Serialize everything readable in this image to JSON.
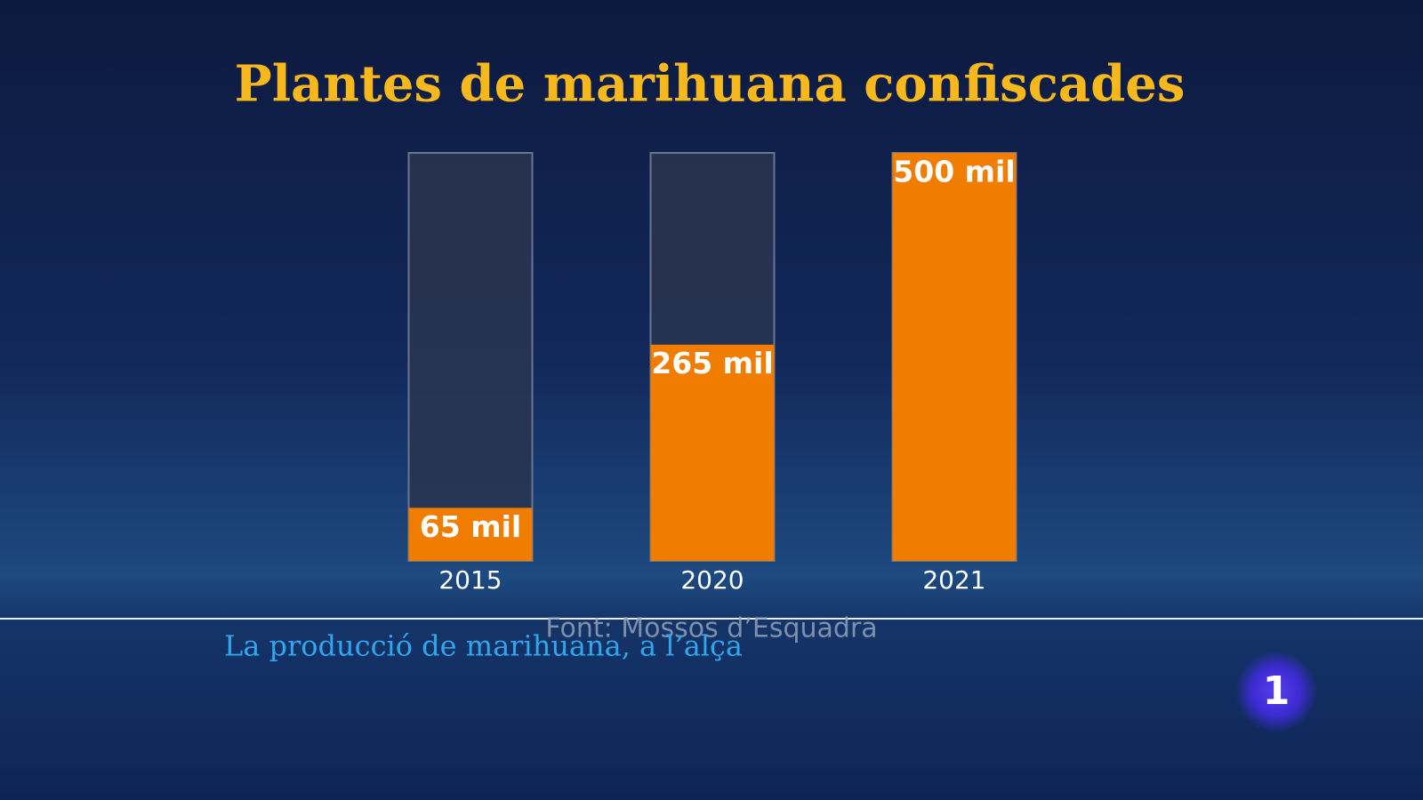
{
  "chart_data": {
    "type": "bar",
    "title": "Plantes de marihuana confiscades",
    "categories": [
      "2015",
      "2020",
      "2021"
    ],
    "values": [
      65,
      265,
      500
    ],
    "value_labels": [
      "65 mil",
      "265 mil",
      "500 mil"
    ],
    "color": "#f07d00",
    "ylim": [
      0,
      500
    ],
    "source": "Font: Mossos d’Esquadra"
  },
  "caption": "La producció de marihuana, a l’alça",
  "logo": "1"
}
